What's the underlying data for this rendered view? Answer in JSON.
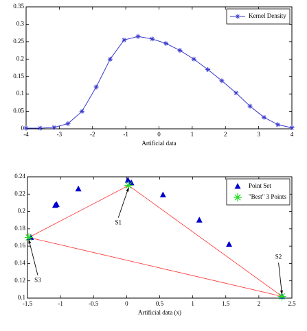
{
  "chart_data": [
    {
      "type": "line",
      "xlabel": "Artificial data",
      "x": [
        -4,
        -3.58,
        -3.16,
        -2.74,
        -2.32,
        -1.89,
        -1.47,
        -1.05,
        -0.63,
        -0.21,
        0.21,
        0.63,
        1.05,
        1.47,
        1.89,
        2.32,
        2.74,
        3.16,
        3.58,
        4
      ],
      "series": [
        {
          "name": "Kernel Density",
          "color": "#3a3acc",
          "marker": "star",
          "values": [
            0.002,
            0.002,
            0.004,
            0.015,
            0.05,
            0.12,
            0.2,
            0.255,
            0.265,
            0.258,
            0.245,
            0.225,
            0.2,
            0.17,
            0.138,
            0.103,
            0.065,
            0.033,
            0.012,
            0.003
          ]
        }
      ],
      "xlim": [
        -4,
        4
      ],
      "xticks": [
        -4,
        -3,
        -2,
        -1,
        0,
        1,
        2,
        3,
        4
      ],
      "ylim": [
        0,
        0.35
      ],
      "yticks": [
        0,
        0.05,
        0.1,
        0.15,
        0.2,
        0.25,
        0.3,
        0.35
      ],
      "legend": "upper right"
    },
    {
      "type": "scatter",
      "xlabel": "Artificial data (x)",
      "series": [
        {
          "name": "Point Set",
          "color": "#0000cc",
          "marker": "triangle",
          "x": [
            -1.08,
            -1.06,
            -0.73,
            0.02,
            0.07,
            0.55,
            1.1,
            1.55,
            -1.45,
            2.35
          ],
          "values": [
            0.207,
            0.208,
            0.226,
            0.236,
            0.233,
            0.219,
            0.19,
            0.162,
            0.17,
            0.102
          ]
        },
        {
          "name": "\"Best\" 3 Points",
          "color": "#22dd22",
          "marker": "asterisk",
          "x": [
            0.03,
            2.35,
            -1.48
          ],
          "values": [
            0.23,
            0.102,
            0.17
          ]
        }
      ],
      "connector_color": "#ff3030",
      "annotations": [
        "S1",
        "S2",
        "S3"
      ],
      "xlim": [
        -1.5,
        2.5
      ],
      "xticks": [
        -1.5,
        -1,
        -0.5,
        0,
        0.5,
        1,
        1.5,
        2,
        2.5
      ],
      "ylim": [
        0.1,
        0.24
      ],
      "yticks": [
        0.1,
        0.12,
        0.14,
        0.16,
        0.18,
        0.2,
        0.22,
        0.24
      ],
      "legend": "upper right"
    }
  ]
}
